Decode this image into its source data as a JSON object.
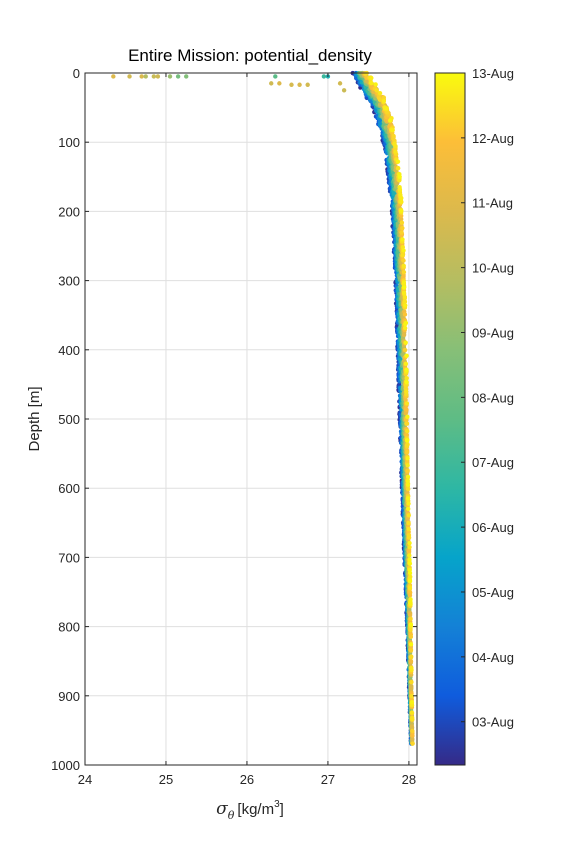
{
  "chart_data": {
    "type": "scatter",
    "title": "Entire Mission: potential_density",
    "ylabel": "Depth [m]",
    "xlabel": {
      "symbol": "σ",
      "subscript": "θ",
      "units_prefix": "[kg/m",
      "units_power": "3",
      "units_suffix": "]"
    },
    "xlim": [
      24,
      28.1
    ],
    "ylim": [
      0,
      1000
    ],
    "y_reversed": true,
    "grid": true,
    "x_ticks": [
      24,
      25,
      26,
      27,
      28
    ],
    "y_ticks": [
      0,
      100,
      200,
      300,
      400,
      500,
      600,
      700,
      800,
      900,
      1000
    ],
    "colorbar": {
      "label_kind": "date",
      "colormap": "parula",
      "ticks": [
        "03-Aug",
        "04-Aug",
        "05-Aug",
        "06-Aug",
        "07-Aug",
        "08-Aug",
        "09-Aug",
        "10-Aug",
        "11-Aug",
        "12-Aug",
        "13-Aug"
      ],
      "range": [
        "02-Aug 08:00",
        "13-Aug 00:00"
      ]
    },
    "series": [
      {
        "profile_points": [
          {
            "depth": 0,
            "density_min": 27.3,
            "density_max": 27.5
          },
          {
            "depth": 25,
            "density_min": 27.4,
            "density_max": 27.65
          },
          {
            "depth": 50,
            "density_min": 27.55,
            "density_max": 27.75
          },
          {
            "depth": 100,
            "density_min": 27.66,
            "density_max": 27.85
          },
          {
            "depth": 150,
            "density_min": 27.72,
            "density_max": 27.9
          },
          {
            "depth": 200,
            "density_min": 27.77,
            "density_max": 27.93
          },
          {
            "depth": 300,
            "density_min": 27.81,
            "density_max": 27.96
          },
          {
            "depth": 400,
            "density_min": 27.84,
            "density_max": 27.98
          },
          {
            "depth": 500,
            "density_min": 27.87,
            "density_max": 27.99
          },
          {
            "depth": 600,
            "density_min": 27.9,
            "density_max": 28.0
          },
          {
            "depth": 700,
            "density_min": 27.93,
            "density_max": 28.02
          },
          {
            "depth": 800,
            "density_min": 27.97,
            "density_max": 28.03
          },
          {
            "depth": 900,
            "density_min": 28.0,
            "density_max": 28.04
          },
          {
            "depth": 970,
            "density_min": 28.02,
            "density_max": 28.05
          }
        ]
      }
    ],
    "surface_outliers": [
      {
        "density": 24.35,
        "depth": 5,
        "day": 10.9
      },
      {
        "density": 24.55,
        "depth": 5,
        "day": 10.6
      },
      {
        "density": 24.7,
        "depth": 5,
        "day": 10.8
      },
      {
        "density": 24.75,
        "depth": 5,
        "day": 9.8
      },
      {
        "density": 24.85,
        "depth": 5,
        "day": 10.3
      },
      {
        "density": 24.9,
        "depth": 5,
        "day": 10.5
      },
      {
        "density": 25.05,
        "depth": 5,
        "day": 9.2
      },
      {
        "density": 25.15,
        "depth": 5,
        "day": 8.3
      },
      {
        "density": 25.25,
        "depth": 5,
        "day": 8.6
      },
      {
        "density": 26.3,
        "depth": 15,
        "day": 10.5
      },
      {
        "density": 26.4,
        "depth": 15,
        "day": 10.9
      },
      {
        "density": 26.55,
        "depth": 17,
        "day": 10.7
      },
      {
        "density": 26.65,
        "depth": 17,
        "day": 10.8
      },
      {
        "density": 26.75,
        "depth": 17,
        "day": 10.6
      },
      {
        "density": 26.95,
        "depth": 5,
        "day": 6.9
      },
      {
        "density": 27.0,
        "depth": 5,
        "day": 6.2
      },
      {
        "density": 26.35,
        "depth": 5,
        "day": 7.6
      },
      {
        "density": 27.15,
        "depth": 15,
        "day": 10.6
      },
      {
        "density": 27.2,
        "depth": 25,
        "day": 10.4
      }
    ]
  }
}
